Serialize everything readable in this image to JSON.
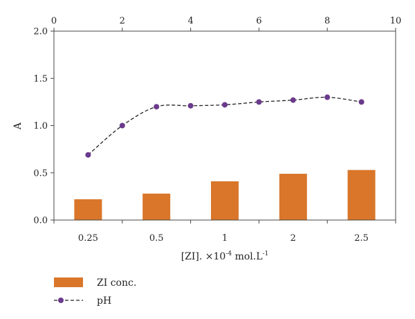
{
  "chart_data": {
    "type": "bar+line",
    "bar": {
      "categories": [
        "0.25",
        "0.5",
        "1",
        "2",
        "2.5"
      ],
      "values": [
        0.22,
        0.28,
        0.41,
        0.49,
        0.53
      ],
      "legend_label": "ZI conc.",
      "color": "#D9762A"
    },
    "line": {
      "x": [
        1,
        2,
        3,
        4,
        5,
        6,
        7,
        8,
        9
      ],
      "y": [
        0.69,
        1.0,
        1.2,
        1.21,
        1.22,
        1.25,
        1.27,
        1.3,
        1.25
      ],
      "legend_label": "pH",
      "color": "#6A3A8C",
      "style": "dashed",
      "markers": "circle"
    },
    "y_axis": {
      "label": "A",
      "lim": [
        0,
        2.0
      ],
      "ticks": [
        "0.0",
        "0.5",
        "1.0",
        "1.5",
        "2.0"
      ],
      "tick_values": [
        0,
        0.5,
        1.0,
        1.5,
        2.0
      ]
    },
    "x_axis_bottom": {
      "label_main": "[ZI]. ×10",
      "label_exp": "-4",
      "label_unit": " mol.L",
      "label_unit_exp": "-1"
    },
    "x_axis_top": {
      "lim": [
        0,
        10
      ],
      "ticks": [
        "0",
        "2",
        "4",
        "6",
        "8",
        "10"
      ],
      "tick_values": [
        0,
        2,
        4,
        6,
        8,
        10
      ]
    },
    "grid": false,
    "legend_position": "bottom-left"
  }
}
